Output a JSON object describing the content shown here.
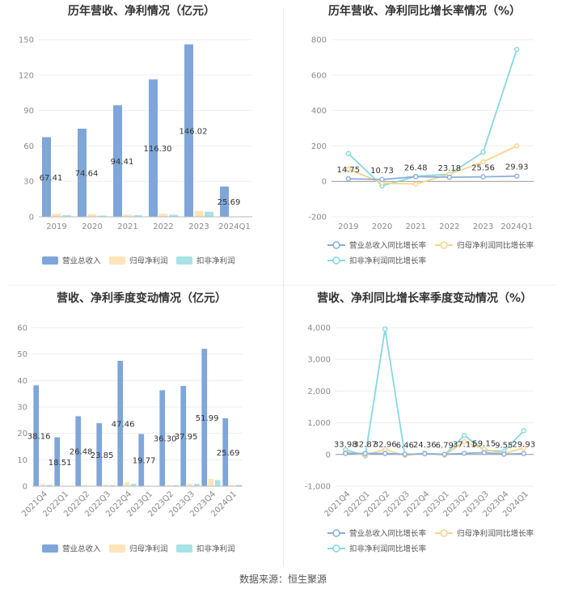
{
  "source": "数据来源：恒生聚源",
  "colors": {
    "revenue": "#7fa6d8",
    "net": "#fde5b8",
    "deducted": "#a8e2e6",
    "revenue_line": "#8aaed9",
    "net_line": "#fad38a",
    "deducted_line": "#86d8e0",
    "grid": "#eeeeee",
    "axis": "#bbbbbb"
  },
  "chart_data": [
    {
      "id": "annual_amount",
      "type": "bar",
      "title": "历年营收、净利情况（亿元）",
      "categories": [
        "2019",
        "2020",
        "2021",
        "2022",
        "2023",
        "2024Q1"
      ],
      "ylim": [
        0,
        150
      ],
      "yticks": [
        0,
        30,
        60,
        90,
        120,
        150
      ],
      "series": [
        {
          "name": "营业总收入",
          "values": [
            67.41,
            74.64,
            94.41,
            116.3,
            146.02,
            25.69
          ]
        },
        {
          "name": "归母净利润",
          "values": [
            2.6,
            2.3,
            1.9,
            2.6,
            5.0,
            0.4
          ]
        },
        {
          "name": "扣非净利润",
          "values": [
            1.3,
            1.0,
            1.3,
            1.7,
            4.3,
            0.5
          ]
        }
      ],
      "labels": [
        "67.41",
        "74.64",
        "94.41",
        "116.30",
        "146.02",
        "25.69"
      ],
      "legend": [
        "营业总收入",
        "归母净利润",
        "扣非净利润"
      ]
    },
    {
      "id": "annual_growth",
      "type": "line",
      "title": "历年营收、净利同比增长率情况（%）",
      "categories": [
        "2019",
        "2020",
        "2021",
        "2022",
        "2023",
        "2024Q1"
      ],
      "ylim": [
        -200,
        800
      ],
      "yticks": [
        -200,
        0,
        200,
        400,
        600,
        800
      ],
      "series": [
        {
          "name": "营业总收入同比增长率",
          "values": [
            14.75,
            10.73,
            26.48,
            23.18,
            25.56,
            29.93
          ]
        },
        {
          "name": "归母净利润同比增长率",
          "values": [
            70,
            -10,
            -15,
            40,
            110,
            200
          ]
        },
        {
          "name": "扣非净利润同比增长率",
          "values": [
            157,
            -25,
            28,
            40,
            165,
            745
          ]
        }
      ],
      "labels": [
        "14.75",
        "10.73",
        "26.48",
        "23.18",
        "25.56",
        "29.93"
      ],
      "legend": [
        "营业总收入同比增长率",
        "归母净利润同比增长率",
        "扣非净利润同比增长率"
      ]
    },
    {
      "id": "quarterly_amount",
      "type": "bar",
      "title": "营收、净利季度变动情况（亿元）",
      "categories": [
        "2021Q4",
        "2022Q1",
        "2022Q2",
        "2022Q3",
        "2022Q4",
        "2023Q1",
        "2023Q2",
        "2023Q3",
        "2023Q4",
        "2024Q1"
      ],
      "ylim": [
        0,
        60
      ],
      "yticks": [
        0,
        10,
        20,
        30,
        40,
        50,
        60
      ],
      "series": [
        {
          "name": "营业总收入",
          "values": [
            38.16,
            18.51,
            26.48,
            23.85,
            47.46,
            19.77,
            36.3,
            37.95,
            51.99,
            25.69
          ]
        },
        {
          "name": "归母净利润",
          "values": [
            0.8,
            0.1,
            0.4,
            0.6,
            1.5,
            0.2,
            0.5,
            1.0,
            2.8,
            0.4
          ]
        },
        {
          "name": "扣非净利润",
          "values": [
            0.5,
            0.1,
            0.2,
            0.4,
            0.9,
            0.1,
            0.4,
            0.9,
            2.3,
            0.5
          ]
        }
      ],
      "labels": [
        "38.16",
        "18.51",
        "26.48",
        "23.85",
        "47.46",
        "19.77",
        "36.30",
        "37.95",
        "51.99",
        "25.69"
      ],
      "legend": [
        "营业总收入",
        "归母净利润",
        "扣非净利润"
      ]
    },
    {
      "id": "quarterly_growth",
      "type": "line",
      "title": "营收、净利同比增长率季度变动情况（%）",
      "categories": [
        "2021Q4",
        "2022Q1",
        "2022Q2",
        "2022Q3",
        "2022Q4",
        "2023Q1",
        "2023Q2",
        "2023Q3",
        "2023Q4",
        "2024Q1"
      ],
      "ylim": [
        -1000,
        4000
      ],
      "yticks": [
        -1000,
        0,
        1000,
        2000,
        3000,
        4000
      ],
      "ytick_labels": [
        "-1,000",
        "0",
        "1,000",
        "2,000",
        "3,000",
        "4,000"
      ],
      "series": [
        {
          "name": "营业总收入同比增长率",
          "values": [
            33.98,
            32.87,
            32.96,
            6.46,
            24.36,
            6.79,
            37.11,
            59.15,
            9.55,
            29.93
          ]
        },
        {
          "name": "归母净利润同比增长率",
          "values": [
            60,
            -10,
            150,
            -30,
            30,
            -20,
            400,
            170,
            20,
            210
          ]
        },
        {
          "name": "扣非净利润同比增长率",
          "values": [
            150,
            -40,
            3960,
            -20,
            40,
            -10,
            600,
            130,
            100,
            750
          ]
        }
      ],
      "labels": [
        "33.98",
        "32.87",
        "32.96",
        "6.46",
        "24.36",
        "6.79",
        "37.11",
        "59.15",
        "9.55",
        "29.93"
      ],
      "legend": [
        "营业总收入同比增长率",
        "归母净利润同比增长率",
        "扣非净利润同比增长率"
      ]
    }
  ]
}
